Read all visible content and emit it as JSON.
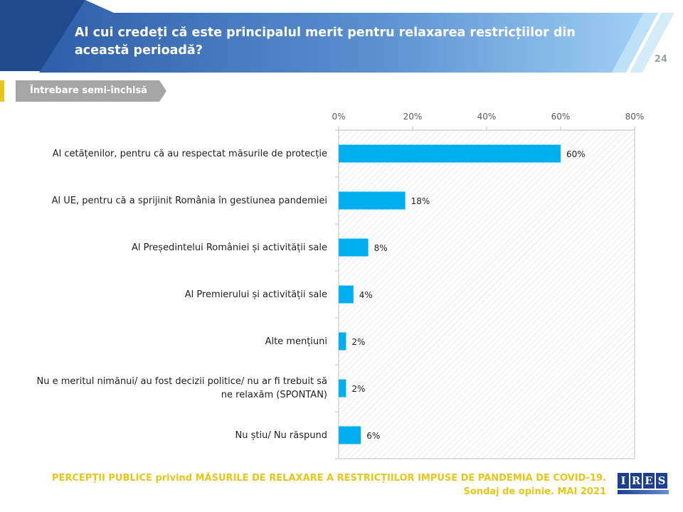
{
  "header": {
    "title": "Al cui credeți că este principalul merit pentru relaxarea restricțiilor din această perioadă?",
    "page_number": "24"
  },
  "question_type": "Întrebare semi-închisă",
  "colors": {
    "accent": "#e8c51a",
    "bar": "#00aeef",
    "header_dark": "#2e5ea8",
    "header_light": "#8fc2ee",
    "tag_gray": "#a6a6a6"
  },
  "chart_data": {
    "type": "bar",
    "orientation": "horizontal",
    "categories": [
      "Al cetățenilor, pentru că au respectat măsurile de protecție",
      "Al UE, pentru că a sprijinit România în gestiunea pandemiei",
      "Al Președintelui României și activității sale",
      "Al Premierului și activității sale",
      "Alte mențiuni",
      "Nu e meritul nimănui/ au fost decizii politice/ nu ar fi trebuit să ne relaxăm (SPONTAN)",
      "Nu știu/ Nu răspund"
    ],
    "values": [
      60,
      18,
      8,
      4,
      2,
      2,
      6
    ],
    "value_labels": [
      "60%",
      "18%",
      "8%",
      "4%",
      "2%",
      "2%",
      "6%"
    ],
    "xlim": [
      0,
      80
    ],
    "ticks": [
      0,
      20,
      40,
      60,
      80
    ],
    "tick_labels": [
      "0%",
      "20%",
      "40%",
      "60%",
      "80%"
    ],
    "axis_position": "top",
    "background_pattern": "diagonal-hatch",
    "gridlines": false
  },
  "footer": {
    "line1": "PERCEPȚII PUBLICE privind MĂSURILE DE RELAXARE A RESTRICȚIILOR IMPUSE  DE PANDEMIA DE COVID-19.",
    "line2": "Sondaj de opinie. MAI 2021"
  },
  "logo": {
    "letters": [
      "I",
      "R",
      "E",
      "S"
    ]
  }
}
